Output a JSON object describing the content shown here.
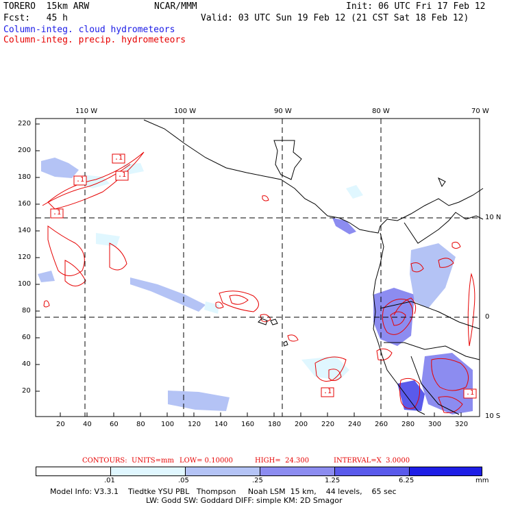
{
  "header": {
    "model": "TORERO  15km ARW",
    "org": "NCAR/MMM",
    "init": "Init: 06 UTC Fri 17 Feb 12",
    "fcst": "Fcst:   45 h",
    "valid": "Valid: 03 UTC Sun 19 Feb 12 (21 CST Sat 18 Feb 12)",
    "legend_cloud": "Column-integ. cloud hydrometeors",
    "legend_precip": "Column-integ. precip. hydrometeors"
  },
  "map": {
    "top_lon_labels": [
      "110 W",
      "100 W",
      "90 W",
      "80 W",
      "70 W"
    ],
    "right_lat_labels": [
      "10 N",
      "0",
      "10 S"
    ],
    "y_ticks": [
      "220",
      "200",
      "180",
      "160",
      "140",
      "120",
      "100",
      "80",
      "60",
      "40",
      "20"
    ],
    "x_ticks": [
      "20",
      "40",
      "60",
      "80",
      "100",
      "120",
      "140",
      "160",
      "180",
      "200",
      "220",
      "240",
      "260",
      "280",
      "300",
      "320"
    ],
    "contour_boxes": [
      ".1",
      ".1",
      ".1",
      ".1",
      ".1",
      ".1"
    ]
  },
  "contours": {
    "label": "CONTOURS:",
    "units": "UNITS=mm",
    "low": "LOW= 0.10000",
    "high": "HIGH=  24.300",
    "interval": "INTERVAL=X  3.0000"
  },
  "colorbar": {
    "labels": [
      ".01",
      ".05",
      ".25",
      "1.25",
      "6.25"
    ],
    "unit": "mm",
    "colors": [
      "#ffffff",
      "#e0f7ff",
      "#b4c3f5",
      "#8c8cf0",
      "#5a5aeb",
      "#1e1ee6"
    ]
  },
  "footer": {
    "line1": "Model Info: V3.3.1    Tiedtke YSU PBL   Thompson     Noah LSM  15 km,    44 levels,    65 sec",
    "line2": "LW: Godd SW: Goddard DIFF: simple KM: 2D Smagor"
  }
}
